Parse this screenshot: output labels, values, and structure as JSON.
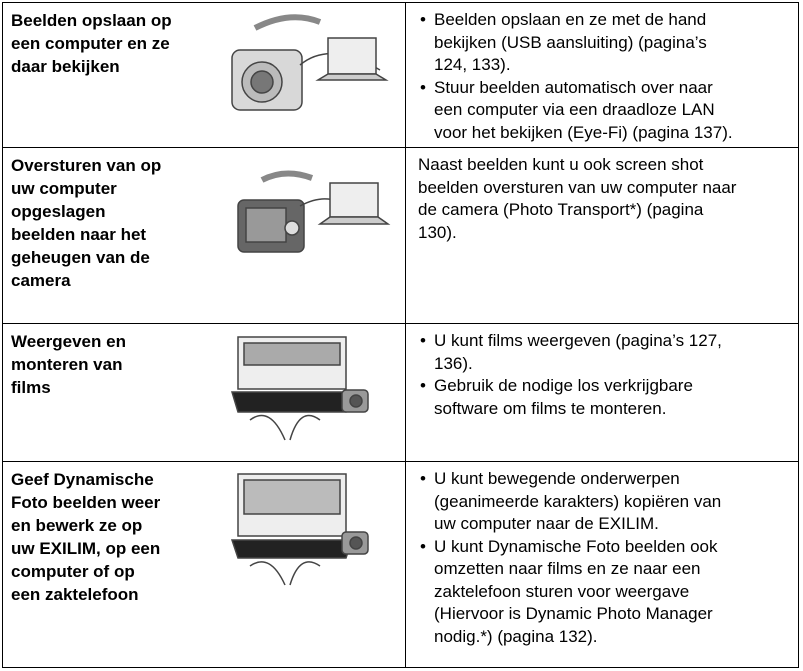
{
  "table": {
    "rows": [
      {
        "title": [
          "Beelden opslaan op",
          "een computer en ze",
          "daar bekijken"
        ],
        "bullets": [
          [
            "Beelden opslaan en ze met de hand",
            "bekijken (USB aansluiting) (pagina’s",
            "124, 133)."
          ],
          [
            "Stuur beelden automatisch over naar",
            "een computer via een draadloze LAN",
            "voor het bekijken (Eye-Fi) (pagina 137)."
          ]
        ]
      },
      {
        "title": [
          "Oversturen van op",
          "uw computer",
          "opgeslagen",
          "beelden naar het",
          "geheugen van de",
          "camera"
        ],
        "text": [
          "Naast beelden kunt u ook screen shot",
          "beelden oversturen van uw computer naar",
          "de camera (Photo Transport*) (pagina",
          "130)."
        ]
      },
      {
        "title": [
          "Weergeven en",
          "monteren van",
          "films"
        ],
        "bullets": [
          [
            "U kunt films weergeven (pagina’s 127,",
            "136)."
          ],
          [
            "Gebruik de nodige los verkrijgbare",
            "software om films te monteren."
          ]
        ]
      },
      {
        "title": [
          "Geef Dynamische",
          "Foto beelden weer",
          "en bewerk ze op",
          "uw EXILIM, op een",
          "computer of op",
          "een zaktelefoon"
        ],
        "bullets": [
          [
            "U kunt bewegende onderwerpen",
            "(geanimeerde karakters) kopiëren van",
            "uw computer naar de EXILIM."
          ],
          [
            "U kunt Dynamische Foto beelden ook",
            "omzetten naar films en ze naar een",
            "zaktelefoon sturen voor weergave",
            "(Hiervoor is Dynamic Photo Manager",
            "nodig.*) (pagina 132)."
          ]
        ]
      }
    ]
  }
}
